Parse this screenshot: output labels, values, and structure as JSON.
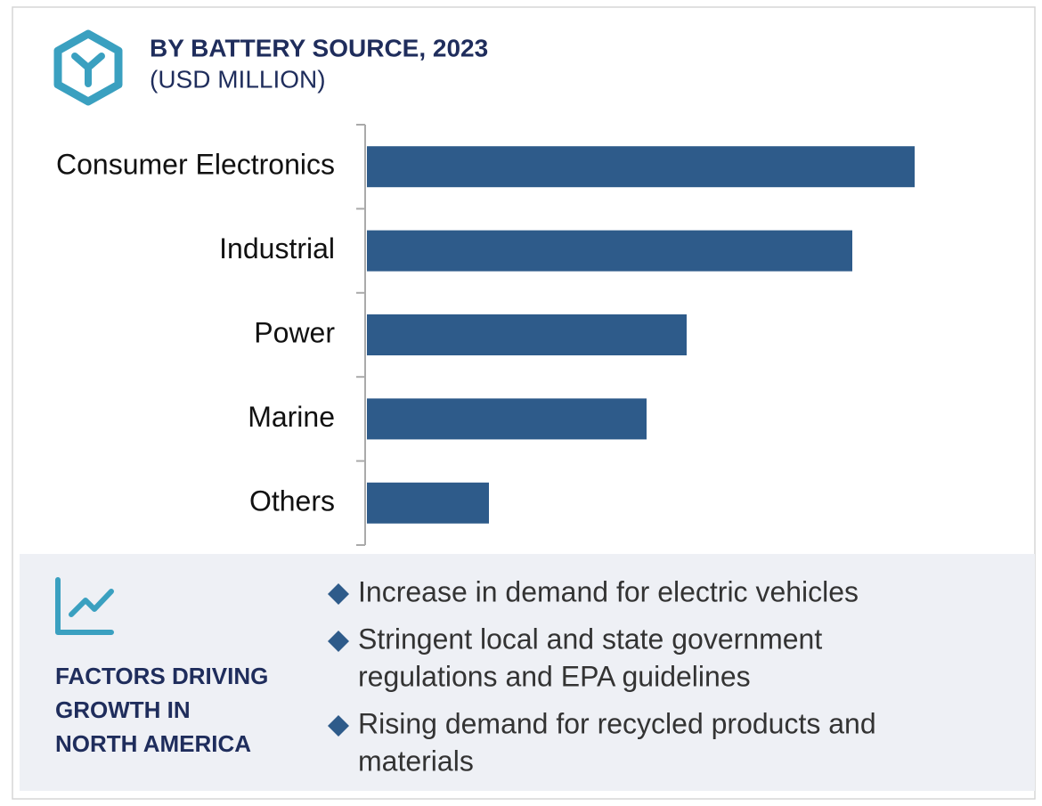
{
  "chart_data": {
    "type": "bar",
    "orientation": "horizontal",
    "title": "BY BATTERY SOURCE, 2023",
    "subtitle": "(USD MILLION)",
    "categories": [
      "Consumer Electronics",
      "Industrial",
      "Power",
      "Marine",
      "Others"
    ],
    "values": [
      615,
      545,
      359,
      314,
      137
    ],
    "color": "#2e5b8a",
    "xlim": [
      0,
      750
    ]
  },
  "factors": {
    "heading": [
      "FACTORS DRIVING",
      "GROWTH IN",
      "NORTH AMERICA"
    ],
    "items": [
      [
        "Increase in demand for electric vehicles"
      ],
      [
        "Stringent local and state government",
        "regulations and EPA guidelines"
      ],
      [
        "Rising demand for recycled products and",
        "materials"
      ]
    ]
  }
}
